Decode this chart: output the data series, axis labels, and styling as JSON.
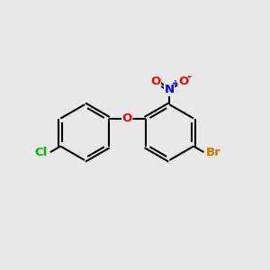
{
  "background_color": "#e8e8e8",
  "bond_color": "#000000",
  "bond_lw": 1.5,
  "atom_colors": {
    "O": "#ff0000",
    "N": "#0000ee",
    "Cl": "#00bb00",
    "Br": "#cc7700"
  },
  "font_size": 9.5,
  "figsize": [
    3.0,
    3.0
  ],
  "dpi": 100,
  "lcx": 3.1,
  "lcy": 5.1,
  "rcx": 6.3,
  "rcy": 5.1,
  "ring_r": 1.05
}
